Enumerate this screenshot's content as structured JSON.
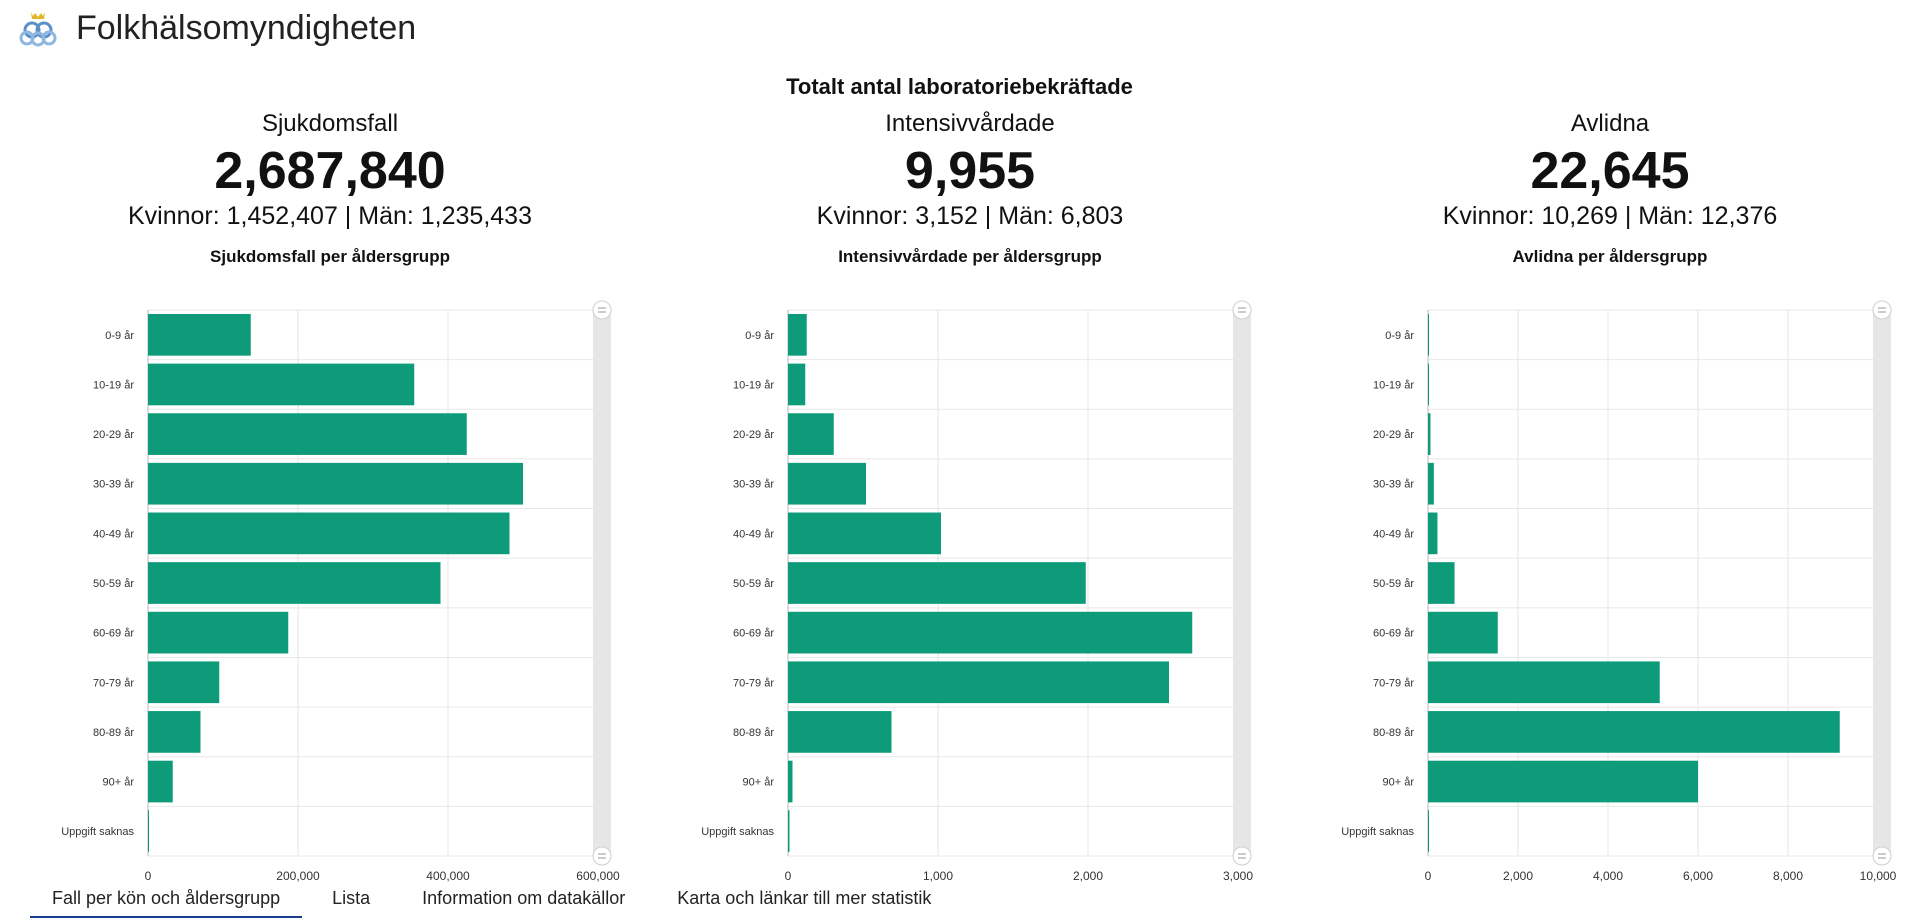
{
  "org_name": "Folkhälsomyndigheten",
  "main_title": "Totalt antal laboratoriebekräftade",
  "accent_color": "#0d9b7a",
  "stats": [
    {
      "label": "Sjukdomsfall",
      "total": "2,687,840",
      "split": "Kvinnor: 1,452,407 | Män: 1,235,433",
      "chart_title": "Sjukdomsfall per åldersgrupp"
    },
    {
      "label": "Intensivvårdade",
      "total": "9,955",
      "split": "Kvinnor: 3,152 | Män: 6,803",
      "chart_title": "Intensivvårdade per åldersgrupp"
    },
    {
      "label": "Avlidna",
      "total": "22,645",
      "split": "Kvinnor: 10,269 | Män: 12,376",
      "chart_title": "Avlidna per åldersgrupp"
    }
  ],
  "chart_data": [
    {
      "type": "bar",
      "orientation": "horizontal",
      "title": "Sjukdomsfall per åldersgrupp",
      "categories": [
        "0-9 år",
        "10-19 år",
        "20-29 år",
        "30-39 år",
        "40-49 år",
        "50-59 år",
        "60-69 år",
        "70-79 år",
        "80-89 år",
        "90+ år",
        "Uppgift saknas"
      ],
      "values": [
        137000,
        355000,
        425000,
        500000,
        482000,
        390000,
        187000,
        95000,
        70000,
        33000,
        1000
      ],
      "xlim": [
        0,
        600000
      ],
      "ticks": [
        "0",
        "200,000",
        "400,000",
        "600,000"
      ],
      "grid": true
    },
    {
      "type": "bar",
      "orientation": "horizontal",
      "title": "Intensivvårdade per åldersgrupp",
      "categories": [
        "0-9 år",
        "10-19 år",
        "20-29 år",
        "30-39 år",
        "40-49 år",
        "50-59 år",
        "60-69 år",
        "70-79 år",
        "80-89 år",
        "90+ år",
        "Uppgift saknas"
      ],
      "values": [
        125,
        115,
        305,
        520,
        1020,
        1985,
        2695,
        2540,
        690,
        30,
        10
      ],
      "xlim": [
        0,
        3000
      ],
      "ticks": [
        "0",
        "1,000",
        "2,000",
        "3,000"
      ],
      "grid": true
    },
    {
      "type": "bar",
      "orientation": "horizontal",
      "title": "Avlidna per åldersgrupp",
      "categories": [
        "0-9 år",
        "10-19 år",
        "20-29 år",
        "30-39 år",
        "40-49 år",
        "50-59 år",
        "60-69 år",
        "70-79 år",
        "80-89 år",
        "90+ år",
        "Uppgift saknas"
      ],
      "values": [
        15,
        20,
        55,
        130,
        210,
        590,
        1550,
        5150,
        9150,
        6000,
        10
      ],
      "xlim": [
        0,
        10000
      ],
      "ticks": [
        "0",
        "2,000",
        "4,000",
        "6,000",
        "8,000",
        "10,000"
      ],
      "grid": true
    }
  ],
  "tabs": [
    {
      "label": "Fall per kön och åldersgrupp",
      "active": true
    },
    {
      "label": "Lista",
      "active": false
    },
    {
      "label": "Information om datakällor",
      "active": false
    },
    {
      "label": "Karta och länkar till mer statistik",
      "active": false
    }
  ]
}
